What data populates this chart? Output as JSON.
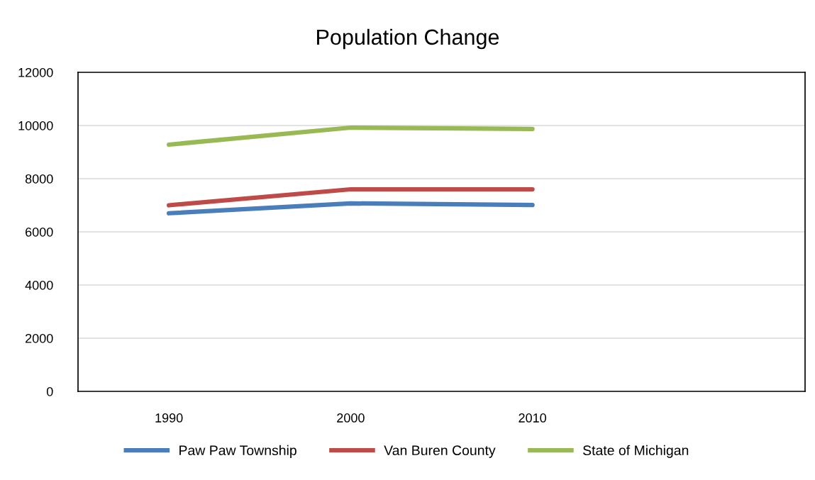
{
  "chart_data": {
    "type": "line",
    "title": "Population Change",
    "categories": [
      "1990",
      "2000",
      "2010",
      null
    ],
    "series": [
      {
        "name": "Paw Paw Township",
        "color": "#4a7ebb",
        "values": [
          6700,
          7070,
          7010,
          null
        ]
      },
      {
        "name": "Van Buren County",
        "color": "#be4b48",
        "values": [
          7000,
          7600,
          7600,
          null
        ]
      },
      {
        "name": "State of Michigan",
        "color": "#98b954",
        "values": [
          9280,
          9920,
          9870,
          null
        ]
      }
    ],
    "ylim": [
      0,
      12000
    ],
    "yticks": [
      0,
      2000,
      4000,
      6000,
      8000,
      10000,
      12000
    ],
    "grid": "y",
    "legend": "bottom",
    "marker": "none",
    "line_style": "solid"
  }
}
